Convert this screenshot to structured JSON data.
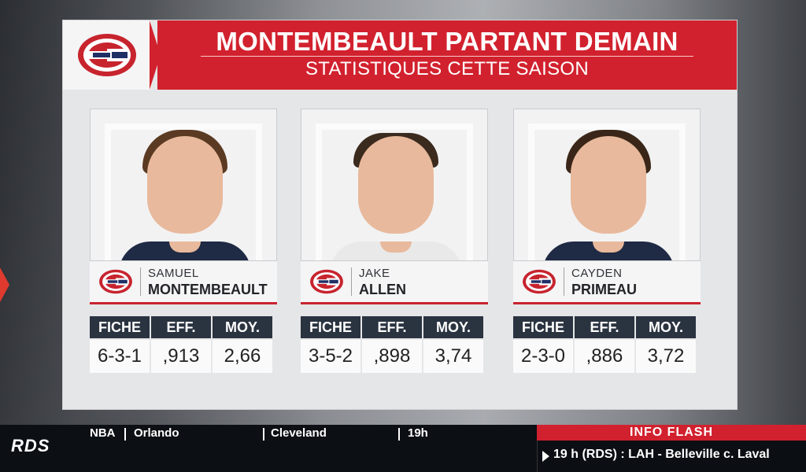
{
  "header": {
    "title": "MONTEMBEAULT PARTANT DEMAIN",
    "subtitle": "STATISTIQUES CETTE SAISON"
  },
  "colors": {
    "brand_red": "#d2212e",
    "stats_header": "#2a3340"
  },
  "stats_columns": [
    "FICHE",
    "EFF.",
    "MOY."
  ],
  "players": [
    {
      "first_name": "SAMUEL",
      "last_name": "MONTEMBEAULT",
      "fiche": "6-3-1",
      "eff": ",913",
      "moy": "2,66"
    },
    {
      "first_name": "JAKE",
      "last_name": "ALLEN",
      "fiche": "3-5-2",
      "eff": ",898",
      "moy": "3,74"
    },
    {
      "first_name": "CAYDEN",
      "last_name": "PRIMEAU",
      "fiche": "2-3-0",
      "eff": ",886",
      "moy": "3,72"
    }
  ],
  "ticker": {
    "network": "RDS",
    "league": "NBA",
    "team1": "Orlando",
    "team2": "Cleveland",
    "time": "19h",
    "flash_label": "INFO FLASH",
    "flash_text": "19 h (RDS) : LAH - Belleville c. Laval"
  }
}
